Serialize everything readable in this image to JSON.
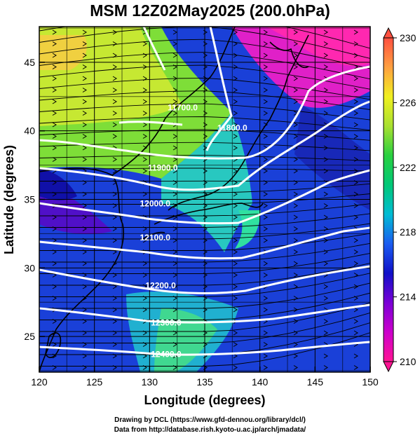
{
  "title": "MSM 12Z02May2025 (200.0hPa)",
  "x_axis": {
    "label": "Longitude (degrees)",
    "range": [
      120,
      150
    ],
    "ticks": [
      120,
      125,
      130,
      135,
      140,
      145,
      150
    ]
  },
  "y_axis": {
    "label": "Latitude  (degrees)",
    "range": [
      22.4,
      47.6
    ],
    "ticks": [
      25,
      30,
      35,
      40,
      45
    ]
  },
  "colorbar": {
    "min": 210,
    "max": 230,
    "ticks": [
      210,
      214,
      218,
      222,
      226,
      230
    ],
    "colors": [
      "#ff1493",
      "#cc00cc",
      "#7a00d6",
      "#1010c8",
      "#1a5cf0",
      "#00bcd4",
      "#00c878",
      "#28d040",
      "#a8e030",
      "#f0f020",
      "#ffa040",
      "#ff5040"
    ]
  },
  "contours": [
    {
      "label": "11700.0",
      "lon": 133.0,
      "lat": 41.5
    },
    {
      "label": "11800.0",
      "lon": 137.5,
      "lat": 40.0
    },
    {
      "label": "11900.0",
      "lon": 131.2,
      "lat": 37.1
    },
    {
      "label": "12000.0",
      "lon": 130.5,
      "lat": 34.5
    },
    {
      "label": "12100.0",
      "lon": 130.5,
      "lat": 32.0
    },
    {
      "label": "12200.0",
      "lon": 131.0,
      "lat": 28.5
    },
    {
      "label": "12300.0",
      "lon": 131.5,
      "lat": 25.8
    },
    {
      "label": "12400.0",
      "lon": 131.5,
      "lat": 23.5
    }
  ],
  "credits": [
    "Drawing by DCL (https://www.gfd-dennou.org/library/dcl/)",
    "Data from http://database.rish.kyoto-u.ac.jp/arch/jmadata/"
  ]
}
